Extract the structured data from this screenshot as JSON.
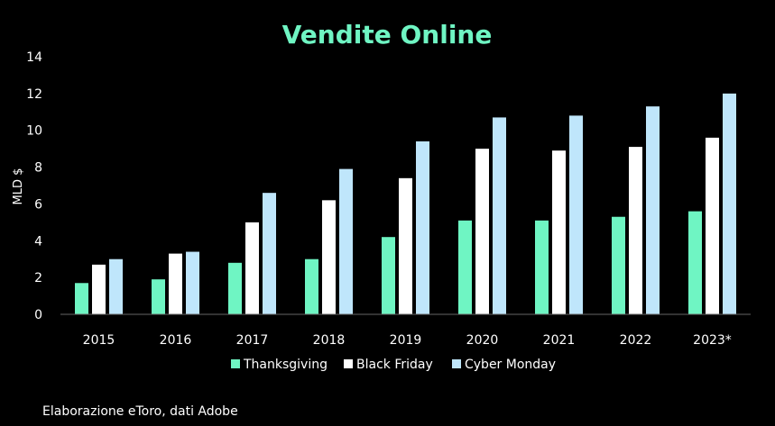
{
  "chart_data": {
    "type": "bar",
    "title": "Vendite Online",
    "ylabel": "MLD $",
    "xlabel": "",
    "ylim": [
      0,
      14
    ],
    "yticks": [
      0,
      2,
      4,
      6,
      8,
      10,
      12,
      14
    ],
    "categories": [
      "2015",
      "2016",
      "2017",
      "2018",
      "2019",
      "2020",
      "2021",
      "2022",
      "2023*"
    ],
    "series": [
      {
        "name": "Thanksgiving",
        "color": "#6ff5c3",
        "values": [
          1.7,
          1.9,
          2.8,
          3.0,
          4.2,
          5.1,
          5.1,
          5.3,
          5.6
        ]
      },
      {
        "name": "Black Friday",
        "color": "#ffffff",
        "values": [
          2.7,
          3.3,
          5.0,
          6.2,
          7.4,
          9.0,
          8.9,
          9.1,
          9.6
        ]
      },
      {
        "name": "Cyber Monday",
        "color": "#bfe6fb",
        "values": [
          3.0,
          3.4,
          6.6,
          7.9,
          9.4,
          10.7,
          10.8,
          11.3,
          12.0
        ]
      }
    ],
    "legend_position": "bottom",
    "grid": false,
    "title_color": "#6ff5c3"
  },
  "footer": {
    "note": "Elaborazione eToro, dati Adobe"
  }
}
